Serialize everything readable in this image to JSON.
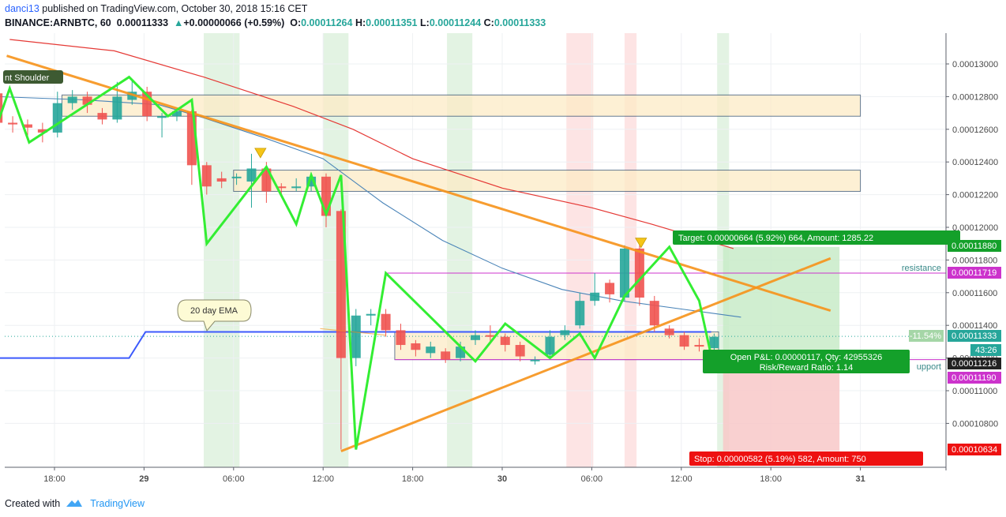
{
  "header": {
    "user": "danci13",
    "published_text": "published on TradingView.com, October 30, 2018 15:16 CET",
    "symbol": "BINANCE:ARNBTC, 60",
    "last": "0.00011333",
    "change_arrow": "up-triangle-icon",
    "change": "+0.00000066 (+0.59%)",
    "o_label": "O:",
    "o_value": "0.00011264",
    "h_label": "H:",
    "h_value": "0.00011351",
    "l_label": "L:",
    "l_value": "0.00011244",
    "c_label": "C:",
    "c_value": "0.00011333"
  },
  "footer": {
    "created_with": "Created with",
    "brand": "TradingView"
  },
  "annotations": {
    "shoulder": "nt Shoulder",
    "ema": "20 day EMA",
    "resistance": "resistance",
    "support": "upport",
    "target": "Target: 0.00000664 (5.92%) 664, Amount: 1285.22",
    "stop": "Stop: 0.00000582 (5.19%) 582, Amount: 750",
    "open_pnl": "Open P&L: 0.00000117, Qty: 42955326",
    "risk_reward": "Risk/Reward Ratio: 1.14",
    "pct": "-11.54%",
    "countdown": "43:26"
  },
  "price_labels": {
    "p11880": "0.00011880",
    "p11719": "0.00011719",
    "p11333": "0.00011333",
    "p11216": "0.00011216",
    "p11190": "0.00011190",
    "p10634": "0.00010634"
  },
  "colors": {
    "bull": "#26a69a",
    "bear": "#ef5350",
    "zigzag": "#33ee33",
    "trend": "#f7931a",
    "ema": "#3c5afc",
    "ma_red": "#e53935",
    "ma_blue": "#4a84b8",
    "resistance": "#cc33cc",
    "target_bg": "#c8ebc8",
    "stop_bg": "#f8c8c8",
    "zone": "#fdebc6"
  },
  "chart_data": {
    "type": "candlestick",
    "y_axis": {
      "ticks": [
        0.00013,
        0.000128,
        0.000126,
        0.000124,
        0.000122,
        0.00012,
        0.000118,
        0.000116,
        0.000114,
        0.000112,
        0.00011,
        0.000108
      ],
      "tick_labels": [
        "0.00013000",
        "0.00012800",
        "0.00012600",
        "0.00012400",
        "0.00012200",
        "0.00012000",
        "0.00011800",
        "0.00011600",
        "0.00011400",
        "0.00011200",
        "0.00011000",
        "0.00010800"
      ]
    },
    "x_axis": {
      "tick_labels": [
        "18:00",
        "29",
        "06:00",
        "12:00",
        "18:00",
        "30",
        "06:00",
        "12:00",
        "18:00",
        "31"
      ],
      "tick_hours": [
        18,
        24,
        30,
        36,
        42,
        48,
        54,
        60,
        66,
        72
      ]
    },
    "candles": [
      {
        "h": 14.2,
        "o": 0.0001282,
        "c": 0.0001264,
        "hi": 0.0001285,
        "lo": 0.000126
      },
      {
        "h": 15.2,
        "o": 0.0001264,
        "c": 0.0001263,
        "hi": 0.0001268,
        "lo": 0.0001258
      },
      {
        "h": 16.2,
        "o": 0.0001263,
        "c": 0.0001261,
        "hi": 0.0001266,
        "lo": 0.0001256
      },
      {
        "h": 17.2,
        "o": 0.000126,
        "c": 0.0001258,
        "hi": 0.0001264,
        "lo": 0.0001252
      },
      {
        "h": 18.2,
        "o": 0.0001258,
        "c": 0.0001276,
        "hi": 0.0001283,
        "lo": 0.0001255
      },
      {
        "h": 19.2,
        "o": 0.0001276,
        "c": 0.000128,
        "hi": 0.0001284,
        "lo": 0.0001272
      },
      {
        "h": 20.2,
        "o": 0.000128,
        "c": 0.0001275,
        "hi": 0.0001283,
        "lo": 0.000127
      },
      {
        "h": 21.2,
        "o": 0.000127,
        "c": 0.0001266,
        "hi": 0.0001273,
        "lo": 0.0001263
      },
      {
        "h": 22.2,
        "o": 0.0001266,
        "c": 0.000128,
        "hi": 0.0001289,
        "lo": 0.0001264
      },
      {
        "h": 23.2,
        "o": 0.0001278,
        "c": 0.0001283,
        "hi": 0.000129,
        "lo": 0.0001275
      },
      {
        "h": 24.2,
        "o": 0.0001283,
        "c": 0.0001268,
        "hi": 0.0001286,
        "lo": 0.0001265
      },
      {
        "h": 25.2,
        "o": 0.0001267,
        "c": 0.0001268,
        "hi": 0.000127,
        "lo": 0.0001255
      },
      {
        "h": 26.2,
        "o": 0.0001268,
        "c": 0.0001271,
        "hi": 0.0001273,
        "lo": 0.0001265
      },
      {
        "h": 27.2,
        "o": 0.0001271,
        "c": 0.0001238,
        "hi": 0.0001272,
        "lo": 0.0001226
      },
      {
        "h": 28.2,
        "o": 0.0001238,
        "c": 0.0001225,
        "hi": 0.000124,
        "lo": 0.000122
      },
      {
        "h": 29.2,
        "o": 0.000123,
        "c": 0.0001228,
        "hi": 0.0001234,
        "lo": 0.0001224
      },
      {
        "h": 30.2,
        "o": 0.000123,
        "c": 0.0001231,
        "hi": 0.0001233,
        "lo": 0.0001226
      },
      {
        "h": 31.2,
        "o": 0.0001228,
        "c": 0.0001236,
        "hi": 0.0001245,
        "lo": 0.0001212
      },
      {
        "h": 32.2,
        "o": 0.0001236,
        "c": 0.0001222,
        "hi": 0.000124,
        "lo": 0.0001215
      },
      {
        "h": 33.2,
        "o": 0.0001225,
        "c": 0.0001224,
        "hi": 0.0001227,
        "lo": 0.000122
      },
      {
        "h": 34.2,
        "o": 0.0001224,
        "c": 0.0001225,
        "hi": 0.000123,
        "lo": 0.0001222
      },
      {
        "h": 35.2,
        "o": 0.0001225,
        "c": 0.0001231,
        "hi": 0.0001233,
        "lo": 0.0001222
      },
      {
        "h": 36.2,
        "o": 0.0001231,
        "c": 0.0001207,
        "hi": 0.0001233,
        "lo": 0.00012
      },
      {
        "h": 37.2,
        "o": 0.000121,
        "c": 0.000112,
        "hi": 0.0001211,
        "lo": 0.0001064
      },
      {
        "h": 38.2,
        "o": 0.000112,
        "c": 0.0001146,
        "hi": 0.000115,
        "lo": 0.0001115
      },
      {
        "h": 39.2,
        "o": 0.0001146,
        "c": 0.0001147,
        "hi": 0.000115,
        "lo": 0.000114
      },
      {
        "h": 40.2,
        "o": 0.0001147,
        "c": 0.0001137,
        "hi": 0.000115,
        "lo": 0.0001133
      },
      {
        "h": 41.2,
        "o": 0.0001137,
        "c": 0.0001128,
        "hi": 0.0001141,
        "lo": 0.0001125
      },
      {
        "h": 42.2,
        "o": 0.0001129,
        "c": 0.0001125,
        "hi": 0.0001131,
        "lo": 0.0001121
      },
      {
        "h": 43.2,
        "o": 0.0001123,
        "c": 0.0001127,
        "hi": 0.000113,
        "lo": 0.000112
      },
      {
        "h": 44.2,
        "o": 0.0001124,
        "c": 0.0001119,
        "hi": 0.0001126,
        "lo": 0.0001117
      },
      {
        "h": 45.2,
        "o": 0.000112,
        "c": 0.0001127,
        "hi": 0.000113,
        "lo": 0.0001118
      },
      {
        "h": 46.2,
        "o": 0.0001131,
        "c": 0.0001134,
        "hi": 0.0001137,
        "lo": 0.0001128
      },
      {
        "h": 47.2,
        "o": 0.0001134,
        "c": 0.0001133,
        "hi": 0.000114,
        "lo": 0.0001129
      },
      {
        "h": 48.2,
        "o": 0.0001133,
        "c": 0.0001128,
        "hi": 0.0001135,
        "lo": 0.0001124
      },
      {
        "h": 49.2,
        "o": 0.0001128,
        "c": 0.0001121,
        "hi": 0.000113,
        "lo": 0.0001118
      },
      {
        "h": 50.2,
        "o": 0.0001118,
        "c": 0.0001119,
        "hi": 0.0001121,
        "lo": 0.0001116
      },
      {
        "h": 51.2,
        "o": 0.0001122,
        "c": 0.0001133,
        "hi": 0.0001137,
        "lo": 0.000112
      },
      {
        "h": 52.2,
        "o": 0.0001134,
        "c": 0.0001137,
        "hi": 0.000114,
        "lo": 0.0001131
      },
      {
        "h": 53.2,
        "o": 0.000114,
        "c": 0.0001155,
        "hi": 0.000116,
        "lo": 0.0001138
      },
      {
        "h": 54.2,
        "o": 0.0001155,
        "c": 0.000116,
        "hi": 0.0001172,
        "lo": 0.0001152
      },
      {
        "h": 55.2,
        "o": 0.0001166,
        "c": 0.0001159,
        "hi": 0.0001168,
        "lo": 0.0001154
      },
      {
        "h": 56.2,
        "o": 0.0001157,
        "c": 0.0001187,
        "hi": 0.0001189,
        "lo": 0.0001155
      },
      {
        "h": 57.2,
        "o": 0.0001187,
        "c": 0.0001157,
        "hi": 0.0001189,
        "lo": 0.0001152
      },
      {
        "h": 58.2,
        "o": 0.0001155,
        "c": 0.000114,
        "hi": 0.0001158,
        "lo": 0.0001136
      },
      {
        "h": 59.2,
        "o": 0.0001138,
        "c": 0.0001134,
        "hi": 0.000114,
        "lo": 0.0001132
      },
      {
        "h": 60.2,
        "o": 0.0001134,
        "c": 0.0001127,
        "hi": 0.0001136,
        "lo": 0.0001125
      },
      {
        "h": 61.2,
        "o": 0.0001128,
        "c": 0.0001127,
        "hi": 0.0001132,
        "lo": 0.0001124
      },
      {
        "h": 62.2,
        "o": 0.0001126,
        "c": 0.0001133,
        "hi": 0.0001135,
        "lo": 0.0001124
      }
    ],
    "zigzag": [
      [
        14.2,
        0.0001264
      ],
      [
        15.0,
        0.0001285
      ],
      [
        16.3,
        0.0001252
      ],
      [
        23.0,
        0.0001292
      ],
      [
        25.6,
        0.0001268
      ],
      [
        27.2,
        0.0001278
      ],
      [
        28.2,
        0.000119
      ],
      [
        32.2,
        0.0001237
      ],
      [
        34.2,
        0.0001202
      ],
      [
        35.2,
        0.0001232
      ],
      [
        36.2,
        0.0001208
      ],
      [
        37.2,
        0.0001232
      ],
      [
        38.2,
        0.0001064
      ],
      [
        40.2,
        0.0001172
      ],
      [
        46.2,
        0.0001118
      ],
      [
        48.2,
        0.0001141
      ],
      [
        51.2,
        0.000112
      ],
      [
        53.2,
        0.0001135
      ],
      [
        54.2,
        0.000112
      ],
      [
        56.2,
        0.0001158
      ],
      [
        59.2,
        0.0001188
      ],
      [
        61.2,
        0.0001155
      ],
      [
        62.2,
        0.0001113
      ]
    ],
    "trendlines": [
      {
        "from": [
          14.8,
          0.0001305
        ],
        "to": [
          70.0,
          0.0001149
        ]
      },
      {
        "from": [
          37.2,
          0.0001063
        ],
        "to": [
          70.0,
          0.0001181
        ]
      },
      {
        "from": [
          35.8,
          0.0001138
        ],
        "to": [
          40.2,
          0.0001134
        ]
      }
    ],
    "ema_line": [
      [
        14.2,
        0.000112
      ],
      [
        23.0,
        0.000112
      ],
      [
        24.1,
        0.0001136
      ],
      [
        42.0,
        0.0001136
      ],
      [
        62.0,
        0.0001136
      ]
    ],
    "ma_red": [
      [
        15.0,
        0.0001315
      ],
      [
        22.0,
        0.0001308
      ],
      [
        28.0,
        0.0001292
      ],
      [
        34.0,
        0.0001274
      ],
      [
        38.0,
        0.000126
      ],
      [
        42.0,
        0.0001242
      ],
      [
        48.0,
        0.0001224
      ],
      [
        54.0,
        0.0001212
      ],
      [
        58.0,
        0.0001202
      ],
      [
        63.5,
        0.0001187
      ]
    ],
    "ma_blue": [
      [
        14.2,
        0.000128
      ],
      [
        20.0,
        0.0001278
      ],
      [
        25.0,
        0.0001275
      ],
      [
        28.0,
        0.0001267
      ],
      [
        32.0,
        0.0001255
      ],
      [
        36.0,
        0.0001242
      ],
      [
        40.0,
        0.0001215
      ],
      [
        44.0,
        0.0001192
      ],
      [
        48.0,
        0.0001175
      ],
      [
        52.0,
        0.0001162
      ],
      [
        56.0,
        0.0001155
      ],
      [
        60.0,
        0.000115
      ],
      [
        64.0,
        0.0001145
      ]
    ],
    "horizontal_zones": [
      {
        "from_h": 18.5,
        "to_h": 72.0,
        "top": 0.0001281,
        "bottom": 0.0001268
      },
      {
        "from_h": 30.0,
        "to_h": 72.0,
        "top": 0.0001235,
        "bottom": 0.0001222
      },
      {
        "from_h": 40.8,
        "to_h": 62.5,
        "top": 0.0001136,
        "bottom": 0.0001119
      }
    ],
    "resistance_line": {
      "from_h": 40.3,
      "to_h": 72.0,
      "price": 0.0001172
    },
    "support_line": {
      "from_h": 40.8,
      "to_h": 72.0,
      "price": 0.0001119
    },
    "position": {
      "entry": 0.0001125,
      "target": 0.0001188,
      "stop": 0.0001063,
      "from_h": 62.8,
      "to_h": 70.6
    },
    "session_bands": [
      {
        "from_h": 28.0,
        "to_h": 30.4,
        "kind": "green"
      },
      {
        "from_h": 36.0,
        "to_h": 37.7,
        "kind": "green"
      },
      {
        "from_h": 44.3,
        "to_h": 46.0,
        "kind": "green"
      },
      {
        "from_h": 52.3,
        "to_h": 54.1,
        "kind": "red"
      },
      {
        "from_h": 56.2,
        "to_h": 57.0,
        "kind": "red"
      },
      {
        "from_h": 62.4,
        "to_h": 63.2,
        "kind": "green"
      }
    ],
    "markers": [
      {
        "h": 15.2,
        "price": 0.0001291
      },
      {
        "h": 31.8,
        "price": 0.0001245
      },
      {
        "h": 57.3,
        "price": 0.000119
      }
    ]
  }
}
